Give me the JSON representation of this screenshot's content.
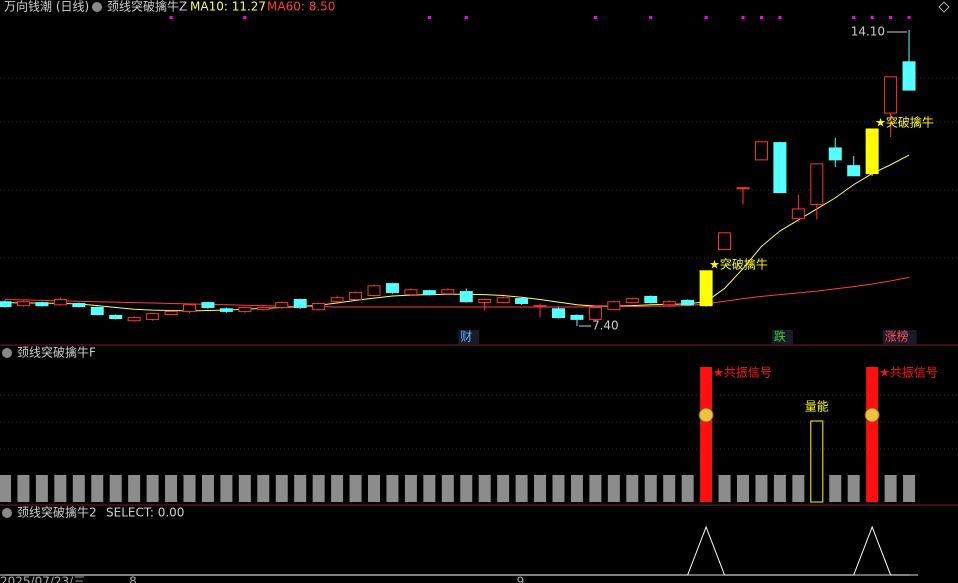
{
  "header": {
    "title": "万向钱潮 (日线)",
    "indicator": "颈线突破擒牛Z"
  },
  "chart_data": [
    {
      "type": "candlestick",
      "up_color": "#ff3232",
      "down_color": "#54ffff",
      "signal_color": "#ffff00",
      "flag_color": "#ff00ff",
      "open": [
        7.95,
        7.86,
        7.93,
        7.88,
        7.91,
        7.82,
        7.64,
        7.52,
        7.55,
        7.66,
        7.73,
        7.93,
        7.79,
        7.73,
        7.77,
        7.82,
        8.0,
        7.77,
        7.95,
        8.0,
        8.09,
        8.36,
        8.11,
        8.2,
        8.13,
        8.18,
        7.93,
        7.93,
        8.02,
        7.86,
        7.79,
        7.64,
        7.55,
        7.77,
        7.93,
        8.07,
        7.88,
        7.98,
        7.86,
        9.13,
        10.53,
        11.16,
        11.55,
        9.83,
        10.15,
        11.43,
        11.03,
        10.85,
        12.22,
        13.38
      ],
      "high": [
        7.98,
        7.98,
        7.95,
        8.04,
        7.93,
        7.84,
        7.66,
        7.62,
        7.7,
        7.75,
        7.91,
        7.95,
        7.82,
        7.84,
        7.84,
        7.95,
        8.02,
        7.93,
        8.09,
        8.18,
        8.34,
        8.38,
        8.25,
        8.22,
        8.25,
        8.25,
        8.02,
        8.07,
        8.04,
        7.91,
        7.82,
        7.66,
        7.84,
        7.98,
        8.04,
        8.09,
        7.98,
        8.0,
        8.65,
        9.51,
        10.53,
        11.57,
        11.57,
        10.37,
        11.07,
        11.66,
        11.25,
        11.86,
        13.04,
        14.1
      ],
      "low": [
        7.82,
        7.84,
        7.84,
        7.86,
        7.82,
        7.64,
        7.55,
        7.5,
        7.52,
        7.64,
        7.7,
        7.79,
        7.7,
        7.7,
        7.75,
        7.79,
        7.79,
        7.75,
        7.93,
        7.98,
        8.07,
        8.13,
        8.09,
        8.09,
        8.11,
        7.93,
        7.75,
        7.91,
        7.88,
        7.59,
        7.57,
        7.4,
        7.52,
        7.75,
        7.91,
        7.91,
        7.86,
        7.86,
        7.84,
        9.13,
        10.15,
        11.16,
        10.42,
        9.76,
        9.81,
        11.0,
        10.8,
        10.8,
        11.68,
        12.74
      ],
      "close": [
        7.84,
        7.95,
        7.86,
        8.0,
        7.84,
        7.66,
        7.57,
        7.59,
        7.68,
        7.73,
        7.88,
        7.82,
        7.73,
        7.82,
        7.82,
        7.93,
        7.82,
        7.91,
        8.04,
        8.16,
        8.31,
        8.16,
        8.22,
        8.11,
        8.22,
        7.95,
        8.0,
        8.04,
        7.91,
        7.86,
        7.59,
        7.55,
        7.82,
        7.95,
        8.02,
        7.93,
        7.95,
        7.88,
        8.65,
        9.51,
        10.53,
        11.57,
        10.42,
        10.05,
        11.07,
        11.16,
        10.8,
        11.86,
        13.04,
        12.74
      ],
      "series": [
        {
          "name": "MA10",
          "label": "MA10: 11.27",
          "color": "#ffff50",
          "values": [
            7.93,
            7.92,
            7.92,
            7.91,
            7.9,
            7.86,
            7.82,
            7.78,
            7.76,
            7.75,
            7.74,
            7.75,
            7.76,
            7.78,
            7.8,
            7.82,
            7.84,
            7.87,
            7.92,
            7.98,
            8.03,
            8.08,
            8.1,
            8.11,
            8.12,
            8.12,
            8.11,
            8.09,
            8.05,
            8.0,
            7.94,
            7.88,
            7.85,
            7.85,
            7.86,
            7.88,
            7.89,
            7.9,
            7.95,
            8.25,
            8.7,
            9.2,
            9.55,
            9.8,
            10.05,
            10.3,
            10.6,
            10.85,
            11.05,
            11.27
          ]
        },
        {
          "name": "MA60",
          "label": "MA60: 8.50",
          "color": "#ff3c3c",
          "values": [
            8.0,
            7.99,
            7.98,
            7.97,
            7.96,
            7.95,
            7.94,
            7.93,
            7.92,
            7.91,
            7.9,
            7.89,
            7.88,
            7.87,
            7.86,
            7.85,
            7.84,
            7.84,
            7.83,
            7.83,
            7.83,
            7.83,
            7.83,
            7.83,
            7.83,
            7.83,
            7.83,
            7.83,
            7.83,
            7.83,
            7.83,
            7.83,
            7.84,
            7.84,
            7.84,
            7.85,
            7.85,
            7.86,
            7.9,
            7.96,
            8.02,
            8.07,
            8.11,
            8.15,
            8.19,
            8.24,
            8.29,
            8.35,
            8.42,
            8.5
          ]
        }
      ],
      "annotations": [
        {
          "text": "★突破擒牛",
          "at": 38
        },
        {
          "text": "★突破擒牛",
          "at": 47
        }
      ],
      "price_marks": [
        {
          "value": 14.1,
          "label": "14.10",
          "at": 49
        },
        {
          "value": 7.4,
          "label": "7.40",
          "at": 31
        }
      ],
      "events": [
        {
          "text": "财",
          "at": 25,
          "color": "#5ab4ff"
        },
        {
          "text": "跌",
          "at": 42,
          "color": "#30d030"
        },
        {
          "text": "涨榜",
          "at": 48,
          "color": "#ff5050"
        }
      ],
      "flags": [
        9,
        13,
        23,
        25,
        32,
        35,
        38,
        40,
        41,
        42,
        46,
        47,
        48,
        49
      ]
    },
    {
      "type": "bar",
      "title": "颈线突破擒牛F",
      "color": "#8c8c8c",
      "values": [
        1,
        1,
        1,
        1,
        1,
        1,
        1,
        1,
        1,
        1,
        1,
        1,
        1,
        1,
        1,
        1,
        1,
        1,
        1,
        1,
        1,
        1,
        1,
        1,
        1,
        1,
        1,
        1,
        1,
        1,
        1,
        1,
        1,
        1,
        1,
        1,
        1,
        1,
        5,
        1,
        1,
        1,
        1,
        1,
        3,
        1,
        1,
        5,
        1,
        1
      ],
      "highlights": [
        {
          "at": 38,
          "color": "#ff1010",
          "label": "★共振信号",
          "filled": true
        },
        {
          "at": 44,
          "color": "#ffff00",
          "label": "量能",
          "filled": false
        },
        {
          "at": 47,
          "color": "#ff1010",
          "label": "★共振信号",
          "filled": true
        }
      ]
    },
    {
      "type": "line",
      "title": "颈线突破擒牛2",
      "subtitle": "SELECT: 0.00",
      "color": "#ffffff",
      "values": [
        0,
        0,
        0,
        0,
        0,
        0,
        0,
        0,
        0,
        0,
        0,
        0,
        0,
        0,
        0,
        0,
        0,
        0,
        0,
        0,
        0,
        0,
        0,
        0,
        0,
        0,
        0,
        0,
        0,
        0,
        0,
        0,
        0,
        0,
        0,
        0,
        0,
        0,
        1,
        0,
        0,
        0,
        0,
        0,
        0,
        0,
        0,
        1,
        0,
        0
      ],
      "x_labels": [
        {
          "text": "2025/07/23/三",
          "at": 0
        },
        {
          "text": "8",
          "at": 7
        },
        {
          "text": "9",
          "at": 28
        }
      ]
    }
  ]
}
